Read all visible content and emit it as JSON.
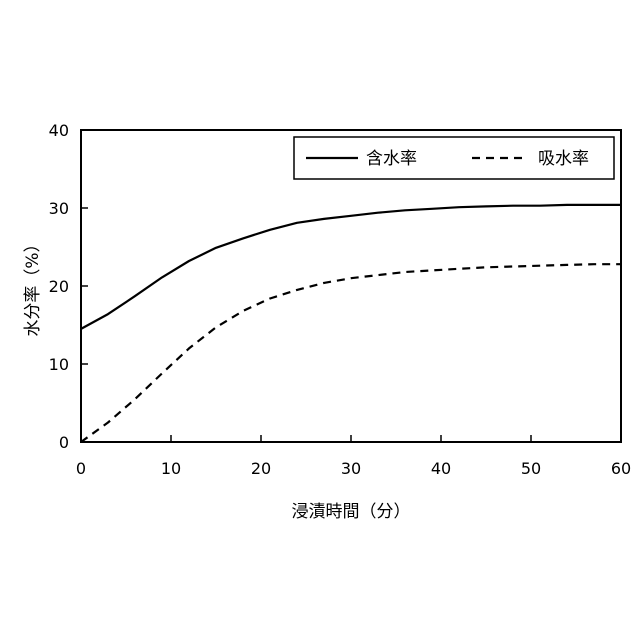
{
  "chart_data": {
    "type": "line",
    "title": "",
    "xlabel": "浸漬時間（分）",
    "ylabel": "水分率（%）",
    "xlim": [
      0,
      60
    ],
    "ylim": [
      0,
      40
    ],
    "xticks": [
      0,
      10,
      20,
      30,
      40,
      50,
      60
    ],
    "yticks": [
      0,
      10,
      20,
      30,
      40
    ],
    "grid": false,
    "legend_position": "top-right",
    "series": [
      {
        "name": "含水率",
        "style": "solid",
        "color": "#000000",
        "x": [
          0,
          3,
          6,
          9,
          12,
          15,
          18,
          21,
          24,
          27,
          30,
          33,
          36,
          39,
          42,
          45,
          48,
          51,
          54,
          57,
          60
        ],
        "y": [
          14.5,
          16.4,
          18.7,
          21.1,
          23.2,
          24.9,
          26.1,
          27.2,
          28.1,
          28.6,
          29.0,
          29.4,
          29.7,
          29.9,
          30.1,
          30.2,
          30.3,
          30.3,
          30.4,
          30.4,
          30.4
        ]
      },
      {
        "name": "吸水率",
        "style": "dashed",
        "color": "#000000",
        "x": [
          0,
          3,
          6,
          9,
          12,
          15,
          18,
          21,
          24,
          27,
          30,
          33,
          36,
          39,
          42,
          45,
          48,
          51,
          54,
          57,
          60
        ],
        "y": [
          0,
          2.5,
          5.5,
          8.8,
          12.0,
          14.7,
          16.8,
          18.4,
          19.5,
          20.4,
          21.0,
          21.4,
          21.8,
          22.0,
          22.2,
          22.4,
          22.5,
          22.6,
          22.7,
          22.8,
          22.8
        ]
      }
    ]
  }
}
